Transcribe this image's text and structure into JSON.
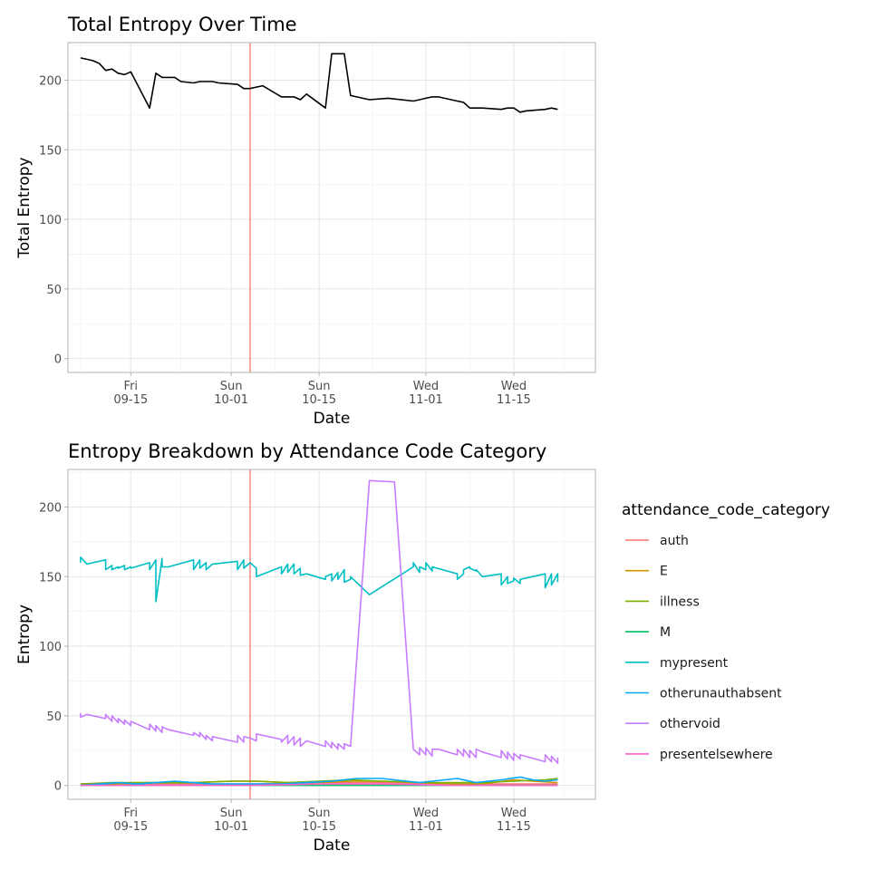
{
  "chart_data": [
    {
      "type": "line",
      "title": "Total Entropy Over Time",
      "xlabel": "Date",
      "ylabel": "Total Entropy",
      "x_range": [
        "2023-09-05",
        "2023-11-28"
      ],
      "ylim": [
        -10,
        227
      ],
      "y_ticks": [
        0,
        50,
        100,
        150,
        200
      ],
      "x_ticks": [
        {
          "date": "2023-09-15",
          "day": "Fri",
          "label": "09-15"
        },
        {
          "date": "2023-10-01",
          "day": "Sun",
          "label": "10-01"
        },
        {
          "date": "2023-10-15",
          "day": "Sun",
          "label": "10-15"
        },
        {
          "date": "2023-11-01",
          "day": "Wed",
          "label": "11-01"
        },
        {
          "date": "2023-11-15",
          "day": "Wed",
          "label": "11-15"
        }
      ],
      "vline": {
        "date": "2023-10-04",
        "color": "#F8766D"
      },
      "grid": true,
      "series": [
        {
          "color": "#000000",
          "x": [
            "2023-09-07",
            "2023-09-08",
            "2023-09-09",
            "2023-09-10",
            "2023-09-11",
            "2023-09-12",
            "2023-09-13",
            "2023-09-14",
            "2023-09-15",
            "2023-09-18",
            "2023-09-19",
            "2023-09-20",
            "2023-09-21",
            "2023-09-22",
            "2023-09-23",
            "2023-09-25",
            "2023-09-26",
            "2023-09-27",
            "2023-09-28",
            "2023-09-29",
            "2023-10-02",
            "2023-10-03",
            "2023-10-04",
            "2023-10-05",
            "2023-10-06",
            "2023-10-09",
            "2023-10-10",
            "2023-10-11",
            "2023-10-12",
            "2023-10-13",
            "2023-10-16",
            "2023-10-17",
            "2023-10-18",
            "2023-10-19",
            "2023-10-20",
            "2023-10-23",
            "2023-10-26",
            "2023-10-30",
            "2023-10-31",
            "2023-11-01",
            "2023-11-02",
            "2023-11-03",
            "2023-11-06",
            "2023-11-07",
            "2023-11-08",
            "2023-11-09",
            "2023-11-10",
            "2023-11-13",
            "2023-11-14",
            "2023-11-15",
            "2023-11-16",
            "2023-11-17",
            "2023-11-20",
            "2023-11-21",
            "2023-11-22"
          ],
          "y": [
            216,
            215,
            214,
            212,
            207,
            208,
            205,
            204,
            206,
            180,
            205,
            202,
            202,
            202,
            199,
            198,
            199,
            199,
            199,
            198,
            197,
            194,
            194,
            195,
            196,
            188,
            188,
            188,
            186,
            190,
            180,
            219,
            219,
            219,
            189,
            186,
            187,
            185,
            186,
            187,
            188,
            188,
            185,
            184,
            180,
            180,
            180,
            179,
            180,
            180,
            177,
            178,
            179,
            180,
            179
          ]
        }
      ]
    },
    {
      "type": "line",
      "title": "Entropy Breakdown by Attendance Code Category",
      "xlabel": "Date",
      "ylabel": "Entropy",
      "x_range": [
        "2023-09-05",
        "2023-11-28"
      ],
      "ylim": [
        -10,
        227
      ],
      "y_ticks": [
        0,
        50,
        100,
        150,
        200
      ],
      "x_ticks": [
        {
          "date": "2023-09-15",
          "day": "Fri",
          "label": "09-15"
        },
        {
          "date": "2023-10-01",
          "day": "Sun",
          "label": "10-01"
        },
        {
          "date": "2023-10-15",
          "day": "Sun",
          "label": "10-15"
        },
        {
          "date": "2023-11-01",
          "day": "Wed",
          "label": "11-01"
        },
        {
          "date": "2023-11-15",
          "day": "Wed",
          "label": "11-15"
        }
      ],
      "vline": {
        "date": "2023-10-04",
        "color": "#F8766D"
      },
      "grid": true,
      "legend_title": "attendance_code_category",
      "legend_position": "right",
      "series": [
        {
          "name": "auth",
          "color": "#F8766D",
          "x": [
            "2023-09-07",
            "2023-09-15",
            "2023-09-25",
            "2023-10-05",
            "2023-10-15",
            "2023-10-25",
            "2023-11-05",
            "2023-11-15",
            "2023-11-22"
          ],
          "y": [
            1,
            1,
            1,
            1,
            2,
            2,
            1,
            1,
            1
          ]
        },
        {
          "name": "E",
          "color": "#CD9600",
          "x": [
            "2023-09-07",
            "2023-09-12",
            "2023-09-18",
            "2023-09-25",
            "2023-10-01",
            "2023-10-05",
            "2023-10-10",
            "2023-10-15",
            "2023-10-20",
            "2023-10-25",
            "2023-11-01",
            "2023-11-05",
            "2023-11-10",
            "2023-11-15",
            "2023-11-18",
            "2023-11-22"
          ],
          "y": [
            0,
            1,
            2,
            2,
            3,
            3,
            2,
            2,
            3,
            3,
            2,
            1,
            1,
            4,
            3,
            2
          ]
        },
        {
          "name": "illness",
          "color": "#7CAE00",
          "x": [
            "2023-09-07",
            "2023-09-12",
            "2023-09-18",
            "2023-09-25",
            "2023-10-01",
            "2023-10-05",
            "2023-10-10",
            "2023-10-15",
            "2023-10-20",
            "2023-10-25",
            "2023-11-01",
            "2023-11-05",
            "2023-11-10",
            "2023-11-15",
            "2023-11-20",
            "2023-11-22"
          ],
          "y": [
            1,
            2,
            2,
            2,
            3,
            3,
            2,
            3,
            4,
            3,
            2,
            2,
            2,
            3,
            4,
            5
          ]
        },
        {
          "name": "M",
          "color": "#00BE67",
          "x": [
            "2023-09-07",
            "2023-09-15",
            "2023-09-25",
            "2023-10-05",
            "2023-10-15",
            "2023-10-25",
            "2023-11-05",
            "2023-11-15",
            "2023-11-22"
          ],
          "y": [
            0,
            0,
            0,
            0,
            0,
            0,
            0,
            0,
            0
          ]
        },
        {
          "name": "mypresent",
          "color": "#00BFC4",
          "x": [
            "2023-09-07",
            "2023-09-07",
            "2023-09-08",
            "2023-09-11",
            "2023-09-11",
            "2023-09-12",
            "2023-09-12",
            "2023-09-13",
            "2023-09-13",
            "2023-09-14",
            "2023-09-14",
            "2023-09-15",
            "2023-09-15",
            "2023-09-18",
            "2023-09-18",
            "2023-09-19",
            "2023-09-19",
            "2023-09-20",
            "2023-09-20",
            "2023-09-21",
            "2023-09-25",
            "2023-09-25",
            "2023-09-26",
            "2023-09-26",
            "2023-09-27",
            "2023-09-27",
            "2023-09-28",
            "2023-09-28",
            "2023-10-02",
            "2023-10-02",
            "2023-10-03",
            "2023-10-03",
            "2023-10-04",
            "2023-10-05",
            "2023-10-05",
            "2023-10-09",
            "2023-10-09",
            "2023-10-10",
            "2023-10-10",
            "2023-10-11",
            "2023-10-11",
            "2023-10-12",
            "2023-10-12",
            "2023-10-13",
            "2023-10-16",
            "2023-10-16",
            "2023-10-17",
            "2023-10-17",
            "2023-10-18",
            "2023-10-18",
            "2023-10-19",
            "2023-10-19",
            "2023-10-20",
            "2023-10-20",
            "2023-10-23",
            "2023-10-30",
            "2023-10-30",
            "2023-10-31",
            "2023-10-31",
            "2023-11-01",
            "2023-11-01",
            "2023-11-02",
            "2023-11-02",
            "2023-11-06",
            "2023-11-06",
            "2023-11-07",
            "2023-11-07",
            "2023-11-08",
            "2023-11-08",
            "2023-11-09",
            "2023-11-09",
            "2023-11-10",
            "2023-11-13",
            "2023-11-13",
            "2023-11-14",
            "2023-11-14",
            "2023-11-15",
            "2023-11-15",
            "2023-11-16",
            "2023-11-16",
            "2023-11-20",
            "2023-11-20",
            "2023-11-21",
            "2023-11-21",
            "2023-11-22",
            "2023-11-22"
          ],
          "y": [
            160,
            164,
            159,
            162,
            155,
            158,
            155,
            157,
            156,
            158,
            155,
            157,
            156,
            160,
            155,
            162,
            132,
            163,
            157,
            157,
            162,
            155,
            162,
            156,
            160,
            155,
            159,
            159,
            161,
            155,
            162,
            156,
            160,
            156,
            150,
            157,
            152,
            159,
            153,
            159,
            152,
            156,
            151,
            152,
            148,
            150,
            152,
            147,
            153,
            148,
            155,
            146,
            148,
            150,
            137,
            157,
            160,
            153,
            157,
            155,
            160,
            154,
            157,
            152,
            148,
            152,
            155,
            157,
            156,
            154,
            155,
            150,
            152,
            144,
            150,
            145,
            147,
            149,
            145,
            148,
            152,
            142,
            152,
            144,
            152,
            146
          ]
        },
        {
          "name": "otherunauthabsent",
          "color": "#00A9FF",
          "x": [
            "2023-09-07",
            "2023-09-10",
            "2023-09-13",
            "2023-09-16",
            "2023-09-19",
            "2023-09-22",
            "2023-09-25",
            "2023-09-28",
            "2023-10-01",
            "2023-10-05",
            "2023-10-09",
            "2023-10-13",
            "2023-10-17",
            "2023-10-21",
            "2023-10-25",
            "2023-10-31",
            "2023-11-02",
            "2023-11-06",
            "2023-11-09",
            "2023-11-13",
            "2023-11-16",
            "2023-11-18",
            "2023-11-20",
            "2023-11-22"
          ],
          "y": [
            0,
            1,
            2,
            1,
            2,
            3,
            2,
            1,
            1,
            1,
            1,
            2,
            3,
            5,
            5,
            2,
            3,
            5,
            2,
            4,
            6,
            4,
            3,
            4
          ]
        },
        {
          "name": "othervoid",
          "color": "#C77CFF",
          "x": [
            "2023-09-07",
            "2023-09-07",
            "2023-09-08",
            "2023-09-11",
            "2023-09-11",
            "2023-09-12",
            "2023-09-12",
            "2023-09-13",
            "2023-09-13",
            "2023-09-14",
            "2023-09-14",
            "2023-09-15",
            "2023-09-15",
            "2023-09-18",
            "2023-09-18",
            "2023-09-19",
            "2023-09-19",
            "2023-09-20",
            "2023-09-20",
            "2023-09-21",
            "2023-09-25",
            "2023-09-25",
            "2023-09-26",
            "2023-09-26",
            "2023-09-27",
            "2023-09-27",
            "2023-09-28",
            "2023-09-28",
            "2023-10-02",
            "2023-10-02",
            "2023-10-03",
            "2023-10-03",
            "2023-10-04",
            "2023-10-05",
            "2023-10-05",
            "2023-10-09",
            "2023-10-09",
            "2023-10-10",
            "2023-10-10",
            "2023-10-11",
            "2023-10-11",
            "2023-10-12",
            "2023-10-12",
            "2023-10-13",
            "2023-10-16",
            "2023-10-16",
            "2023-10-17",
            "2023-10-17",
            "2023-10-18",
            "2023-10-18",
            "2023-10-19",
            "2023-10-19",
            "2023-10-20",
            "2023-10-23",
            "2023-10-27",
            "2023-10-30",
            "2023-10-31",
            "2023-10-31",
            "2023-11-01",
            "2023-11-01",
            "2023-11-02",
            "2023-11-02",
            "2023-11-03",
            "2023-11-06",
            "2023-11-06",
            "2023-11-07",
            "2023-11-07",
            "2023-11-08",
            "2023-11-08",
            "2023-11-09",
            "2023-11-09",
            "2023-11-10",
            "2023-11-13",
            "2023-11-13",
            "2023-11-14",
            "2023-11-14",
            "2023-11-15",
            "2023-11-15",
            "2023-11-16",
            "2023-11-16",
            "2023-11-20",
            "2023-11-20",
            "2023-11-21",
            "2023-11-21",
            "2023-11-22",
            "2023-11-22"
          ],
          "y": [
            52,
            49,
            51,
            48,
            51,
            46,
            50,
            45,
            48,
            44,
            47,
            43,
            46,
            40,
            44,
            39,
            43,
            38,
            42,
            40,
            36,
            38,
            35,
            38,
            33,
            36,
            32,
            35,
            31,
            36,
            31,
            35,
            34,
            32,
            37,
            33,
            31,
            36,
            30,
            35,
            29,
            34,
            28,
            32,
            28,
            32,
            27,
            31,
            26,
            30,
            26,
            30,
            28,
            219,
            218,
            26,
            22,
            27,
            22,
            27,
            21,
            26,
            26,
            22,
            26,
            21,
            26,
            20,
            25,
            20,
            26,
            24,
            20,
            25,
            19,
            24,
            18,
            23,
            19,
            22,
            17,
            22,
            17,
            21,
            16,
            20
          ]
        },
        {
          "name": "presentelsewhere",
          "color": "#FF61CC",
          "x": [
            "2023-09-07",
            "2023-09-15",
            "2023-09-25",
            "2023-10-05",
            "2023-10-15",
            "2023-10-25",
            "2023-11-05",
            "2023-11-15",
            "2023-11-22"
          ],
          "y": [
            0,
            0,
            0,
            0,
            1,
            1,
            0,
            0,
            0
          ]
        }
      ]
    }
  ]
}
